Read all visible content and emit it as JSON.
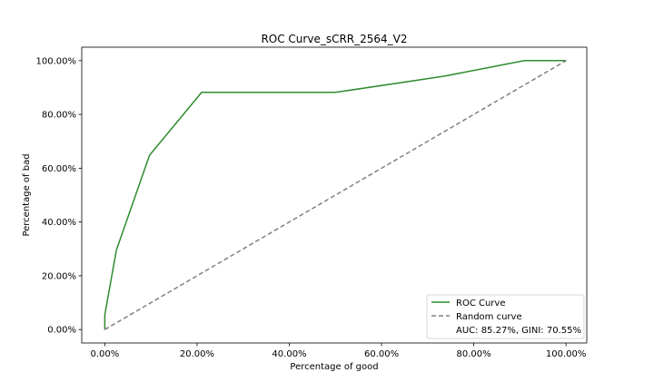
{
  "chart_data": {
    "type": "line",
    "title": "ROC Curve_sCRR_2564_V2",
    "xlabel": "Percentage of good",
    "ylabel": "Percentage of bad",
    "xlim": [
      -0.05,
      1.045
    ],
    "ylim": [
      -0.05,
      1.05
    ],
    "x_ticks": [
      0,
      0.2,
      0.4,
      0.6,
      0.8,
      1.0
    ],
    "x_tick_labels": [
      "0.00%",
      "20.00%",
      "40.00%",
      "60.00%",
      "80.00%",
      "100.00%"
    ],
    "y_ticks": [
      0,
      0.2,
      0.4,
      0.6,
      0.8,
      1.0
    ],
    "y_tick_labels": [
      "0.00%",
      "20.00%",
      "40.00%",
      "60.00%",
      "80.00%",
      "100.00%"
    ],
    "grid": false,
    "legend_position": "lower-right",
    "series": [
      {
        "name": "ROC Curve",
        "color": "#2e8b2e",
        "style": "solid",
        "x": [
          0.0,
          0.0,
          0.0,
          0.025,
          0.097,
          0.21,
          0.5,
          0.735,
          0.91,
          1.0
        ],
        "y": [
          0.0,
          0.03,
          0.055,
          0.295,
          0.648,
          0.882,
          0.882,
          0.942,
          1.0,
          1.0
        ]
      },
      {
        "name": "Random curve",
        "color": "#808080",
        "style": "dashed",
        "x": [
          0.0,
          1.0
        ],
        "y": [
          0.0,
          1.0
        ]
      }
    ],
    "annotation": "AUC: 85.27%, GINI: 70.55%"
  }
}
